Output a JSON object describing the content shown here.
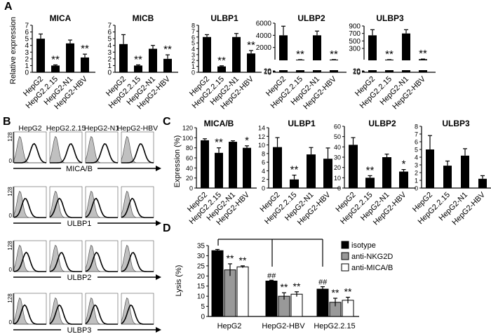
{
  "figure": {
    "panel_labels": [
      "A",
      "B",
      "C",
      "D"
    ],
    "cell_lines": [
      "HepG2",
      "HepG2.2.15",
      "HepG2-N1",
      "HepG2-HBV"
    ],
    "panel_a_ylabel": "Relative expression",
    "panel_c_ylabel": "Expression (%)",
    "panel_d_ylabel": "Lysis (%)",
    "flow_axis_max": "128",
    "flow_markers": [
      "MICA/B",
      "ULBP1",
      "ULBP2",
      "ULBP3"
    ],
    "colors": {
      "bar": "#000000",
      "gray": "#999999",
      "white": "#ffffff",
      "flow_fill": "#c0c0c0"
    }
  },
  "chart_data": [
    {
      "panel": "A",
      "type": "bar",
      "title": "MICA",
      "categories": [
        "HepG2",
        "HepG2.2.15",
        "HepG2-N1",
        "HepG2-HBV"
      ],
      "values": [
        5.0,
        1.0,
        4.3,
        2.2
      ],
      "errors": [
        0.7,
        0.1,
        0.5,
        0.5
      ],
      "sig": [
        "",
        "**",
        "",
        "**"
      ],
      "ylim": [
        0,
        7
      ],
      "yticks": [
        "0",
        "1",
        "2",
        "3",
        "4",
        "5",
        "6",
        "7"
      ],
      "ylabel": "Relative expression"
    },
    {
      "panel": "A",
      "type": "bar",
      "title": "MICB",
      "categories": [
        "HepG2",
        "HepG2.2.15",
        "HepG2-N1",
        "HepG2-HBV"
      ],
      "values": [
        4.2,
        1.0,
        3.5,
        2.0
      ],
      "errors": [
        1.4,
        0.1,
        0.5,
        0.6
      ],
      "sig": [
        "",
        "**",
        "",
        "**"
      ],
      "ylim": [
        0,
        7
      ],
      "yticks": [
        "0",
        "1",
        "2",
        "3",
        "4",
        "5",
        "6",
        "7"
      ]
    },
    {
      "panel": "A",
      "type": "bar",
      "title": "ULBP1",
      "categories": [
        "HepG2",
        "HepG2.2.15",
        "HepG2-N1",
        "HepG2-HBV"
      ],
      "values": [
        6.0,
        1.0,
        6.0,
        3.2
      ],
      "errors": [
        0.4,
        0.1,
        0.6,
        0.5
      ],
      "sig": [
        "",
        "**",
        "",
        "**"
      ],
      "ylim": [
        0,
        8
      ],
      "yticks": [
        "0",
        "1",
        "2",
        "3",
        "4",
        "5",
        "6",
        "7",
        "8"
      ]
    },
    {
      "panel": "A",
      "type": "bar",
      "title": "ULBP2",
      "broken_axis": true,
      "categories": [
        "HepG2",
        "HepG2.2.15",
        "HepG2-N1",
        "HepG2-HBV"
      ],
      "values": [
        4000,
        1,
        4000,
        12
      ],
      "errors": [
        1500,
        0.1,
        700,
        3
      ],
      "sig": [
        "",
        "**",
        "",
        "**"
      ],
      "yticks": [
        "0",
        "10",
        "20",
        "2000",
        "4000",
        "6000"
      ]
    },
    {
      "panel": "A",
      "type": "bar",
      "title": "ULBP3",
      "broken_axis": true,
      "categories": [
        "HepG2",
        "HepG2.2.15",
        "HepG2-N1",
        "HepG2-HBV"
      ],
      "values": [
        650,
        1,
        700,
        12
      ],
      "errors": [
        150,
        0.1,
        100,
        4
      ],
      "sig": [
        "",
        "**",
        "",
        "**"
      ],
      "yticks": [
        "0",
        "10",
        "20",
        "300",
        "500",
        "700",
        "900"
      ]
    },
    {
      "panel": "C",
      "type": "bar",
      "title": "MICA/B",
      "categories": [
        "HepG2",
        "HepG2.2.15",
        "HepG2-N1",
        "HepG2-HBV"
      ],
      "values": [
        95,
        70,
        92,
        80
      ],
      "errors": [
        3,
        10,
        2,
        4
      ],
      "sig": [
        "",
        "**",
        "",
        "*"
      ],
      "ylim": [
        0,
        120
      ],
      "yticks": [
        "0",
        "20",
        "40",
        "60",
        "80",
        "100",
        "120"
      ],
      "ylabel": "Expression (%)"
    },
    {
      "panel": "C",
      "type": "bar",
      "title": "ULBP1",
      "categories": [
        "HepG2",
        "HepG2.2.15",
        "HepG2-N1",
        "HepG2-HBV"
      ],
      "values": [
        9.5,
        2.0,
        7.8,
        6.8
      ],
      "errors": [
        2.2,
        1.0,
        1.6,
        2.5
      ],
      "sig": [
        "",
        "**",
        "",
        ""
      ],
      "ylim": [
        0,
        14
      ],
      "yticks": [
        "0",
        "2",
        "4",
        "6",
        "8",
        "10",
        "12",
        "14"
      ]
    },
    {
      "panel": "C",
      "type": "bar",
      "title": "ULBP2",
      "categories": [
        "HepG2",
        "HepG2.2.15",
        "HepG2-N1",
        "HepG2-HBV"
      ],
      "values": [
        42,
        10,
        30,
        16
      ],
      "errors": [
        7,
        2,
        3,
        2
      ],
      "sig": [
        "",
        "**",
        "",
        "*"
      ],
      "ylim": [
        0,
        60
      ],
      "yticks": [
        "0",
        "10",
        "20",
        "30",
        "40",
        "50",
        "60"
      ]
    },
    {
      "panel": "C",
      "type": "bar",
      "title": "ULBP3",
      "categories": [
        "HepG2",
        "HepG2.2.15",
        "HepG2-N1",
        "HepG2-HBV"
      ],
      "values": [
        5.0,
        2.9,
        4.2,
        1.2
      ],
      "errors": [
        1.8,
        0.6,
        0.9,
        0.4
      ],
      "sig": [
        "",
        "",
        "",
        ""
      ],
      "ylim": [
        0,
        8
      ],
      "yticks": [
        "0",
        "1",
        "2",
        "3",
        "4",
        "5",
        "6",
        "7",
        "8"
      ]
    },
    {
      "panel": "D",
      "type": "bar",
      "ylabel": "Lysis (%)",
      "categories": [
        "HepG2",
        "HepG2-HBV",
        "HepG2.2.15"
      ],
      "series": [
        {
          "name": "isotype",
          "values": [
            32.5,
            17.5,
            13.5
          ],
          "errors": [
            0.6,
            0.4,
            1.2
          ],
          "sig": [
            "",
            "##",
            "##"
          ]
        },
        {
          "name": "anti-NKG2D",
          "values": [
            23,
            10,
            7
          ],
          "errors": [
            3,
            1.7,
            2.0
          ],
          "sig": [
            "**",
            "**",
            "**"
          ]
        },
        {
          "name": "anti-MICA/B",
          "values": [
            24.5,
            11,
            8
          ],
          "errors": [
            0.5,
            1.2,
            1.5
          ],
          "sig": [
            "**",
            "**",
            "**"
          ]
        }
      ],
      "ylim": [
        0,
        35
      ],
      "yticks": [
        "0",
        "5",
        "10",
        "15",
        "20",
        "25",
        "30",
        "35"
      ]
    }
  ]
}
